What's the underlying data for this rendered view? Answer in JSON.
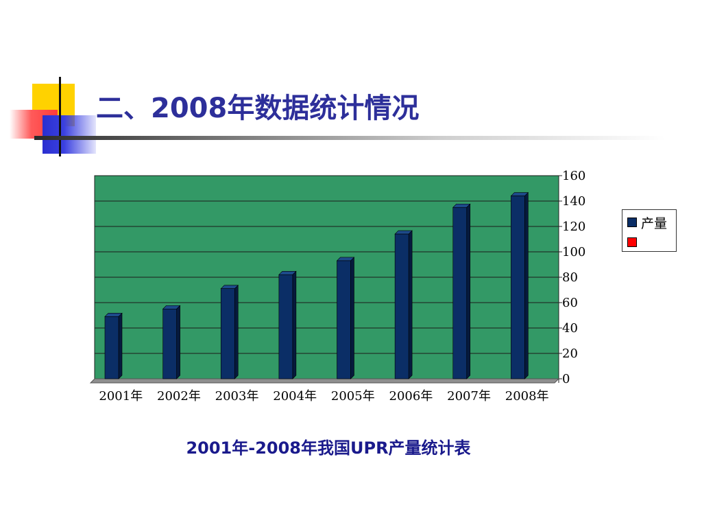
{
  "slide": {
    "title": "二、2008年数据统计情况",
    "caption": "2001年-2008年我国UPR产量统计表"
  },
  "colors": {
    "title": "#2d2f9a",
    "caption": "#1a1a8c",
    "plot_background": "#339966",
    "bar_fill": "#0b2e66",
    "bar_top": "#1d4a8a",
    "bar_side": "#061a3d",
    "floor": "#8f8f8f",
    "legend_series_1": "#0b2e66",
    "legend_series_2": "#ff0000"
  },
  "chart_data": {
    "type": "bar",
    "title": "",
    "xlabel": "",
    "ylabel": "",
    "categories": [
      "2001年",
      "2002年",
      "2003年",
      "2004年",
      "2005年",
      "2006年",
      "2007年",
      "2008年"
    ],
    "series": [
      {
        "name": "产量",
        "values": [
          49,
          55,
          71,
          82,
          93,
          114,
          135,
          144
        ]
      }
    ],
    "legend_entries": [
      "产量",
      ""
    ],
    "legend_position": "right",
    "y_axis_position": "right",
    "ylim": [
      0,
      160
    ],
    "yticks": [
      0,
      20,
      40,
      60,
      80,
      100,
      120,
      140,
      160
    ],
    "grid": true,
    "style_3d": true
  }
}
